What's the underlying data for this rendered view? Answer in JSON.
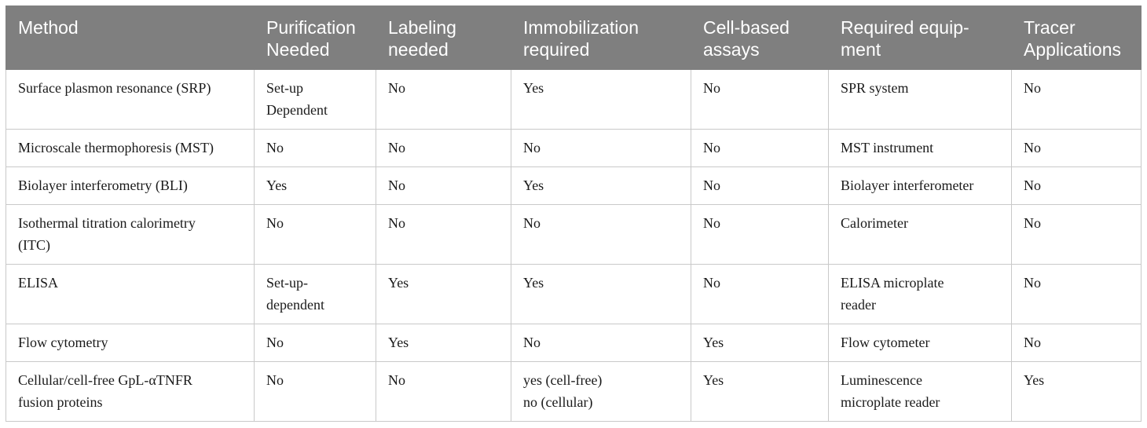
{
  "table": {
    "headers": [
      [
        "Method"
      ],
      [
        "Purification",
        "Needed"
      ],
      [
        "Labeling",
        "needed"
      ],
      [
        "Immobilization",
        "required"
      ],
      [
        "Cell-based",
        "assays"
      ],
      [
        "Required equip-",
        "ment"
      ],
      [
        "Tracer",
        "Applications"
      ]
    ],
    "rows": [
      [
        [
          "Surface plasmon resonance (SRP)"
        ],
        [
          "Set-up",
          "Dependent"
        ],
        [
          "No"
        ],
        [
          "Yes"
        ],
        [
          "No"
        ],
        [
          "SPR system"
        ],
        [
          "No"
        ]
      ],
      [
        [
          "Microscale thermophoresis (MST)"
        ],
        [
          "No"
        ],
        [
          "No"
        ],
        [
          "No"
        ],
        [
          "No"
        ],
        [
          "MST instrument"
        ],
        [
          "No"
        ]
      ],
      [
        [
          "Biolayer interferometry (BLI)"
        ],
        [
          "Yes"
        ],
        [
          "No"
        ],
        [
          "Yes"
        ],
        [
          "No"
        ],
        [
          "Biolayer interferometer"
        ],
        [
          "No"
        ]
      ],
      [
        [
          "Isothermal titration calorimetry",
          "(ITC)"
        ],
        [
          "No"
        ],
        [
          "No"
        ],
        [
          "No"
        ],
        [
          "No"
        ],
        [
          "Calorimeter"
        ],
        [
          "No"
        ]
      ],
      [
        [
          "ELISA"
        ],
        [
          "Set-up-",
          "dependent"
        ],
        [
          "Yes"
        ],
        [
          "Yes"
        ],
        [
          "No"
        ],
        [
          "ELISA microplate",
          "reader"
        ],
        [
          "No"
        ]
      ],
      [
        [
          "Flow cytometry"
        ],
        [
          "No"
        ],
        [
          "Yes"
        ],
        [
          "No"
        ],
        [
          "Yes"
        ],
        [
          "Flow cytometer"
        ],
        [
          "No"
        ]
      ],
      [
        [
          "Cellular/cell-free GpL-αTNFR",
          "fusion proteins"
        ],
        [
          "No"
        ],
        [
          "No"
        ],
        [
          "yes (cell-free)",
          "no (cellular)"
        ],
        [
          "Yes"
        ],
        [
          "Luminescence",
          "microplate reader"
        ],
        [
          "Yes"
        ]
      ]
    ]
  }
}
